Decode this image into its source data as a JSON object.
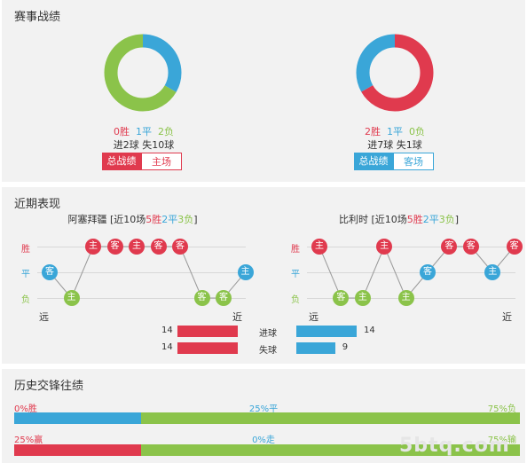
{
  "record": {
    "title": "赛事战绩",
    "left": {
      "donut": [
        {
          "value": 0,
          "color": "#e03a4e"
        },
        {
          "value": 1,
          "color": "#3aa6d8"
        },
        {
          "value": 2,
          "color": "#8bc34a"
        }
      ],
      "win": "0胜",
      "draw": "1平",
      "loss": "2负",
      "goals": "进2球 失10球",
      "tab_active": "总战绩",
      "tab_other": "主场"
    },
    "right": {
      "donut": [
        {
          "value": 2,
          "color": "#e03a4e"
        },
        {
          "value": 1,
          "color": "#3aa6d8"
        },
        {
          "value": 0,
          "color": "#8bc34a"
        }
      ],
      "win": "2胜",
      "draw": "1平",
      "loss": "0负",
      "goals": "进7球 失1球",
      "tab_active": "总战绩",
      "tab_other": "客场"
    }
  },
  "recent": {
    "title": "近期表现",
    "ylabels": {
      "win": "胜",
      "draw": "平",
      "loss": "负"
    },
    "far": "远",
    "near": "近",
    "left": {
      "team": "阿塞拜疆",
      "summary_prefix": " [近10场",
      "wins": "5胜",
      "draws": "2平",
      "losses": "3负",
      "summary_suffix": "]",
      "results": [
        {
          "r": "draw",
          "l": "客"
        },
        {
          "r": "loss",
          "l": "主"
        },
        {
          "r": "win",
          "l": "主"
        },
        {
          "r": "win",
          "l": "客"
        },
        {
          "r": "win",
          "l": "主"
        },
        {
          "r": "win",
          "l": "客"
        },
        {
          "r": "win",
          "l": "客"
        },
        {
          "r": "loss",
          "l": "客"
        },
        {
          "r": "loss",
          "l": "客"
        },
        {
          "r": "draw",
          "l": "主"
        }
      ]
    },
    "right": {
      "team": "比利时",
      "summary_prefix": " [近10场",
      "wins": "5胜",
      "draws": "2平",
      "losses": "3负",
      "summary_suffix": "]",
      "results": [
        {
          "r": "win",
          "l": "主"
        },
        {
          "r": "loss",
          "l": "客"
        },
        {
          "r": "loss",
          "l": "主"
        },
        {
          "r": "win",
          "l": "主"
        },
        {
          "r": "loss",
          "l": "主"
        },
        {
          "r": "draw",
          "l": "客"
        },
        {
          "r": "win",
          "l": "客"
        },
        {
          "r": "win",
          "l": "客"
        },
        {
          "r": "draw",
          "l": "主"
        },
        {
          "r": "win",
          "l": "客"
        }
      ]
    },
    "stats": {
      "scored_label": "进球",
      "conceded_label": "失球",
      "left_scored": 14,
      "left_conceded": 14,
      "right_scored": 14,
      "right_conceded": 9,
      "bar_max": 14
    }
  },
  "history": {
    "title": "历史交锋往绩",
    "row1": {
      "win": "0%胜",
      "draw": "25%平",
      "loss": "75%负",
      "win_frac": 0.0,
      "draw_frac": 0.25,
      "loss_frac": 0.75
    },
    "row2": {
      "win": "25%赢",
      "draw": "0%走",
      "loss": "75%输",
      "win_frac": 0.25,
      "draw_frac": 0.0,
      "loss_frac": 0.75
    }
  },
  "colors": {
    "win": "#e03a4e",
    "draw": "#3aa6d8",
    "loss": "#8bc34a"
  },
  "watermark": "5btq.com"
}
